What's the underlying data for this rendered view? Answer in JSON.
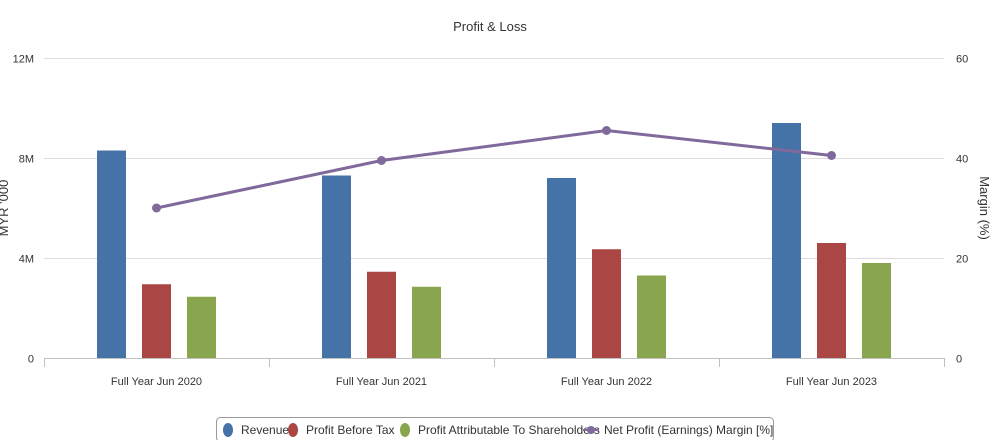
{
  "chart_data": {
    "type": "bar",
    "title": "Profit & Loss",
    "categories": [
      "Full Year Jun 2020",
      "Full Year Jun 2021",
      "Full Year Jun 2022",
      "Full Year Jun 2023"
    ],
    "y_left": {
      "label": "MYR '000",
      "range": [
        0,
        12000000
      ],
      "ticks": [
        0,
        4000000,
        8000000,
        12000000
      ],
      "tick_labels": [
        "0",
        "4M",
        "8M",
        "12M"
      ]
    },
    "y_right": {
      "label": "Margin (%)",
      "range": [
        0,
        60
      ],
      "ticks": [
        0,
        20,
        40,
        60
      ],
      "tick_labels": [
        "0",
        "20",
        "40",
        "60"
      ]
    },
    "grid": true,
    "legend_position": "bottom",
    "series": [
      {
        "name": "Revenue",
        "type": "bar",
        "axis": "left",
        "color": "#4572A7",
        "values": [
          8300000,
          7300000,
          7200000,
          9400000
        ]
      },
      {
        "name": "Profit Before Tax",
        "type": "bar",
        "axis": "left",
        "color": "#AA4643",
        "values": [
          2950000,
          3450000,
          4350000,
          4600000
        ]
      },
      {
        "name": "Profit Attributable To Shareholders",
        "type": "bar",
        "axis": "left",
        "color": "#89A54E",
        "values": [
          2450000,
          2850000,
          3300000,
          3800000
        ]
      },
      {
        "name": "Net Profit (Earnings) Margin [%]",
        "type": "line",
        "axis": "right",
        "color": "#80699B",
        "values": [
          30,
          39.5,
          45.5,
          40.5
        ]
      }
    ]
  }
}
